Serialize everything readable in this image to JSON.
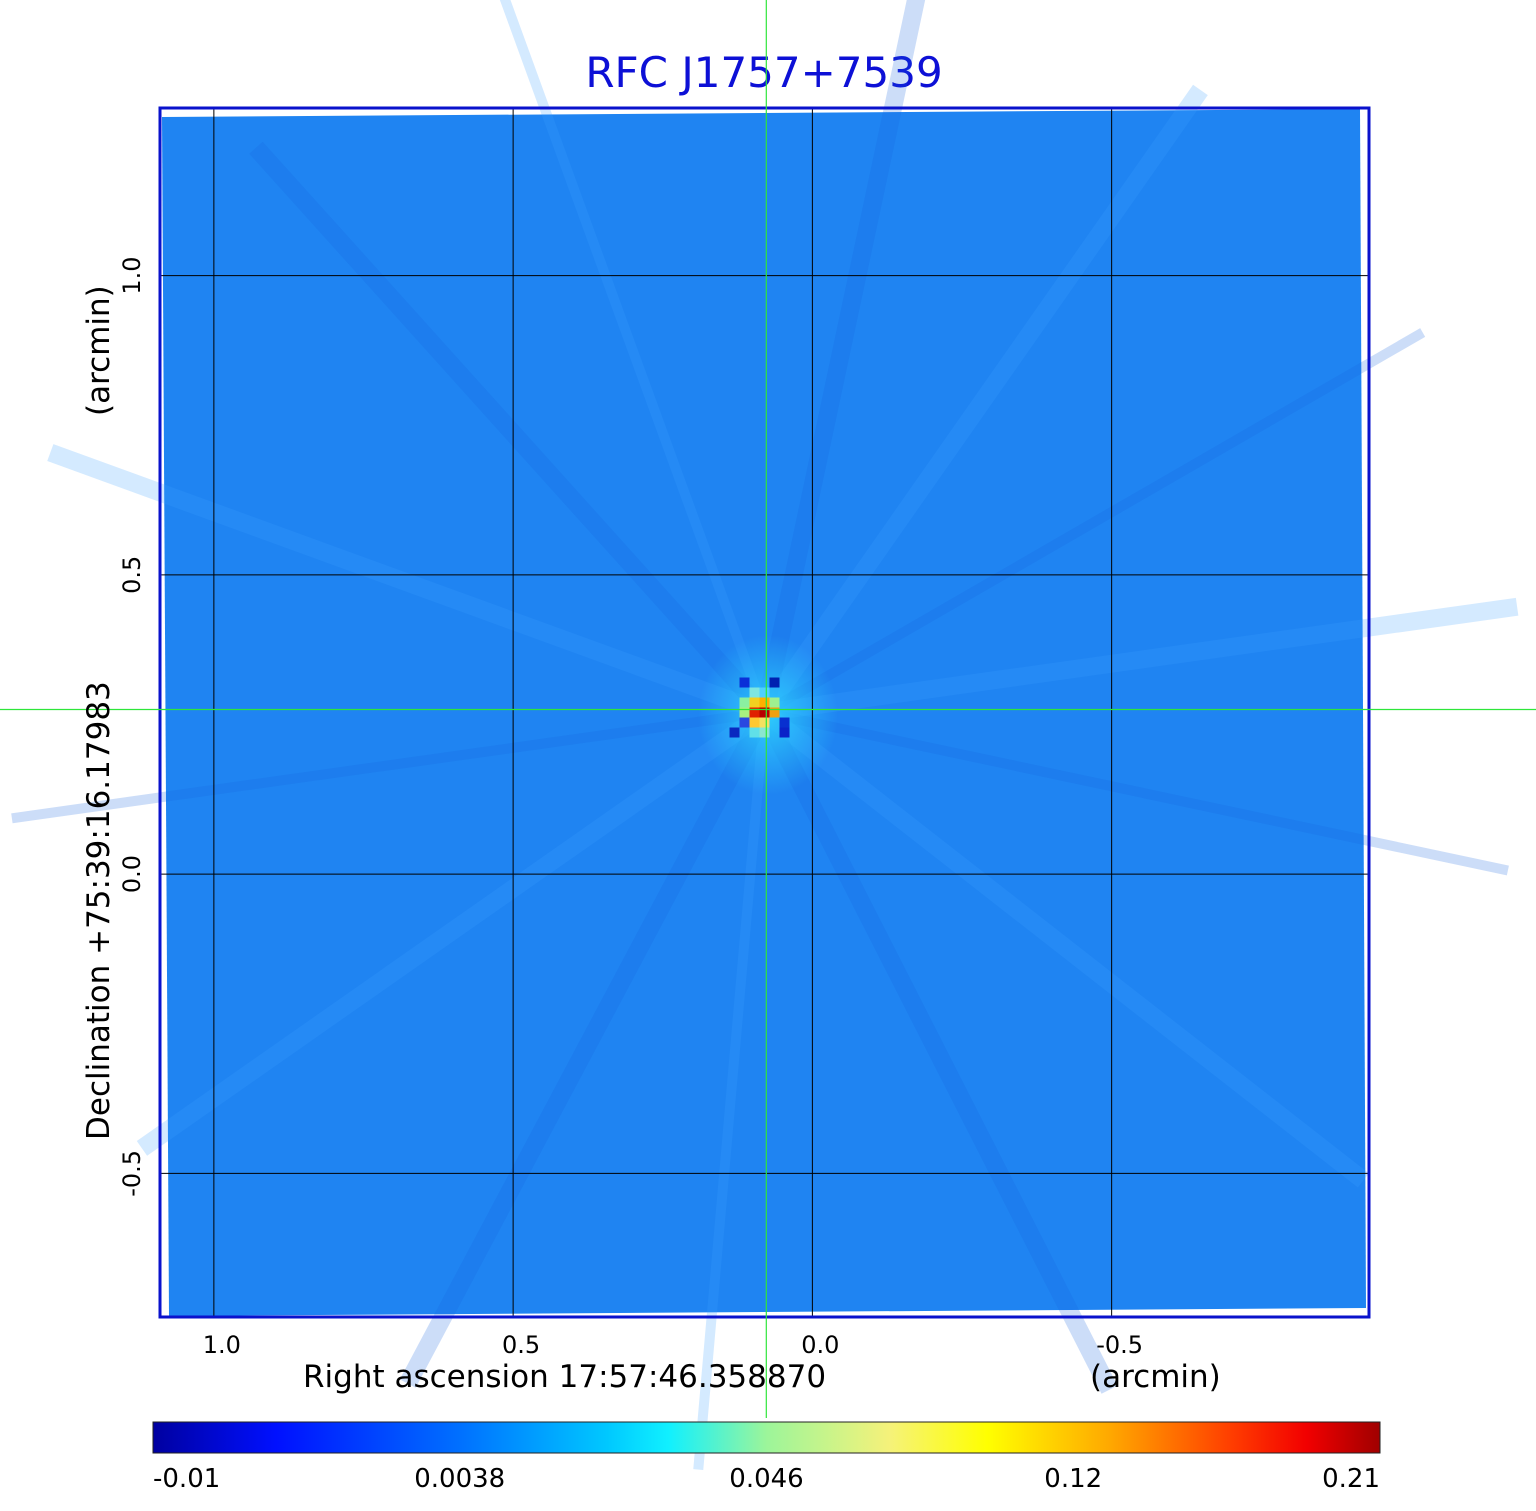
{
  "chart_data": {
    "type": "heatmap",
    "title": "RFC J1757+7539",
    "xlabel": "Right ascension  17:57:46.358870",
    "xunit": "(arcmin)",
    "ylabel": "Declination  +75:39:16.17983",
    "yunit": "(arcmin)",
    "xlim": [
      1.09,
      -0.93
    ],
    "ylim": [
      -0.74,
      1.28
    ],
    "x_ticks": [
      1.0,
      0.5,
      0.0,
      -0.5
    ],
    "x_tick_labels": [
      "1.0",
      "0.5",
      "0.0",
      "-0.5"
    ],
    "y_ticks": [
      1.0,
      0.5,
      0.0,
      -0.5
    ],
    "y_tick_labels": [
      "1.0",
      "0.5",
      "0.0",
      "-0.5"
    ],
    "grid": true,
    "crosshair": {
      "x": 0.077,
      "y": 0.275
    },
    "peak": {
      "x": 0.08,
      "y": 0.27,
      "value": 0.21
    },
    "colorbar": {
      "ticks": [
        "-0.01",
        "0.0038",
        "0.046",
        "0.12",
        "0.21"
      ],
      "colormap": "jet"
    },
    "colors": {
      "title": "#0d10d6",
      "frame": "#0a12cc",
      "grid": "#000000",
      "crosshair": "#2ee63a",
      "background_map": "#1f84f2"
    }
  }
}
